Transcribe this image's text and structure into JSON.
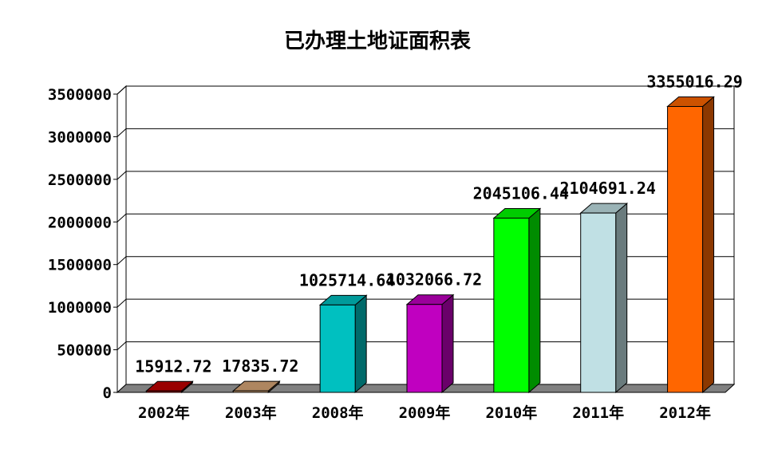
{
  "chart_data": {
    "type": "bar",
    "title": "已办理土地证面积表",
    "categories": [
      "2002年",
      "2003年",
      "2008年",
      "2009年",
      "2010年",
      "2011年",
      "2012年"
    ],
    "values": [
      15912.72,
      17835.72,
      1025714.64,
      1032066.72,
      2045106.44,
      2104691.24,
      3355016.29
    ],
    "data_labels": [
      "15912.72",
      "17835.72",
      "1025714.64",
      "1032066.72",
      "2045106.44",
      "2104691.24",
      "3355016.29"
    ],
    "colors": [
      "#c00000",
      "#d9a878",
      "#00c0c0",
      "#c000c0",
      "#00ff00",
      "#c0e0e4",
      "#ff6600"
    ],
    "ylim": [
      0,
      3500000
    ],
    "yticks": [
      "0",
      "500000",
      "1000000",
      "1500000",
      "2000000",
      "2500000",
      "3000000",
      "3500000"
    ],
    "grid": true,
    "legend": "none",
    "style": "3d"
  }
}
